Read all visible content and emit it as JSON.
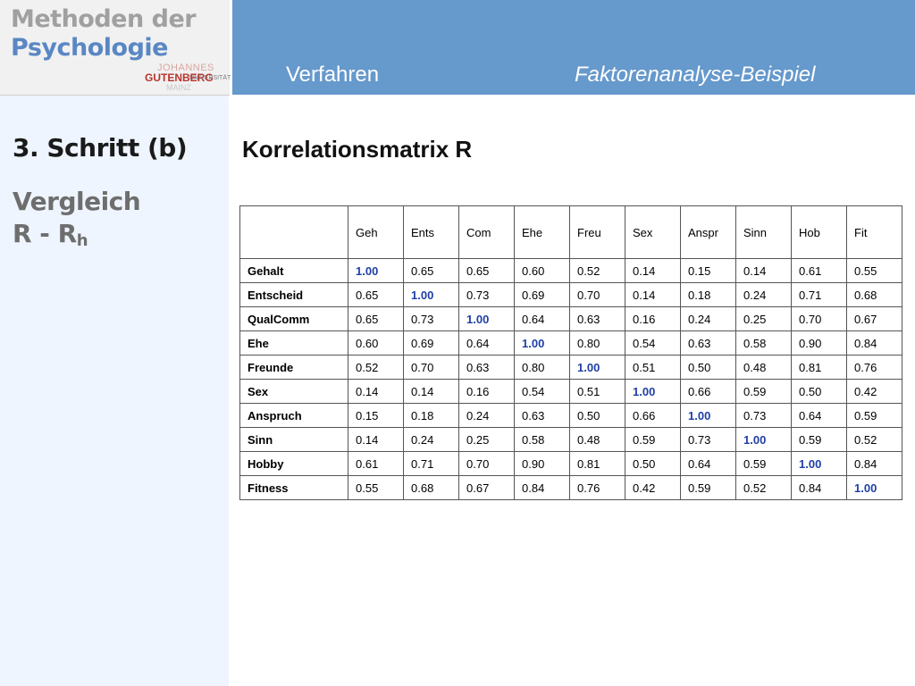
{
  "header": {
    "logo_line1": "Methoden der",
    "logo_line2": "Psychologie",
    "university": {
      "line1": "JOHANNES",
      "line2": "GUTENBERG",
      "line3": "UNIVERSITÄT",
      "line4": "MAINZ"
    },
    "section": "Verfahren",
    "topic": "Faktorenanalyse-Beispiel"
  },
  "sidebar": {
    "step": "3. Schritt (b)",
    "subtitle_line1": "Vergleich",
    "subtitle_line2_main": "R - R",
    "subtitle_line2_sub": "h"
  },
  "main": {
    "title": "Korrelationsmatrix R",
    "columns": [
      "Geh",
      "Ents",
      "Com",
      "Ehe",
      "Freu",
      "Sex",
      "Anspr",
      "Sinn",
      "Hob",
      "Fit"
    ],
    "rows": [
      {
        "label": "Gehalt",
        "values": [
          "1.00",
          "0.65",
          "0.65",
          "0.60",
          "0.52",
          "0.14",
          "0.15",
          "0.14",
          "0.61",
          "0.55"
        ]
      },
      {
        "label": "Entscheid",
        "values": [
          "0.65",
          "1.00",
          "0.73",
          "0.69",
          "0.70",
          "0.14",
          "0.18",
          "0.24",
          "0.71",
          "0.68"
        ]
      },
      {
        "label": "QualComm",
        "values": [
          "0.65",
          "0.73",
          "1.00",
          "0.64",
          "0.63",
          "0.16",
          "0.24",
          "0.25",
          "0.70",
          "0.67"
        ]
      },
      {
        "label": "Ehe",
        "values": [
          "0.60",
          "0.69",
          "0.64",
          "1.00",
          "0.80",
          "0.54",
          "0.63",
          "0.58",
          "0.90",
          "0.84"
        ]
      },
      {
        "label": "Freunde",
        "values": [
          "0.52",
          "0.70",
          "0.63",
          "0.80",
          "1.00",
          "0.51",
          "0.50",
          "0.48",
          "0.81",
          "0.76"
        ]
      },
      {
        "label": "Sex",
        "values": [
          "0.14",
          "0.14",
          "0.16",
          "0.54",
          "0.51",
          "1.00",
          "0.66",
          "0.59",
          "0.50",
          "0.42"
        ]
      },
      {
        "label": "Anspruch",
        "values": [
          "0.15",
          "0.18",
          "0.24",
          "0.63",
          "0.50",
          "0.66",
          "1.00",
          "0.73",
          "0.64",
          "0.59"
        ]
      },
      {
        "label": "Sinn",
        "values": [
          "0.14",
          "0.24",
          "0.25",
          "0.58",
          "0.48",
          "0.59",
          "0.73",
          "1.00",
          "0.59",
          "0.52"
        ]
      },
      {
        "label": "Hobby",
        "values": [
          "0.61",
          "0.71",
          "0.70",
          "0.90",
          "0.81",
          "0.50",
          "0.64",
          "0.59",
          "1.00",
          "0.84"
        ]
      },
      {
        "label": "Fitness",
        "values": [
          "0.55",
          "0.68",
          "0.67",
          "0.84",
          "0.76",
          "0.42",
          "0.59",
          "0.52",
          "0.84",
          "1.00"
        ]
      }
    ]
  },
  "colors": {
    "header_blue": "#6699cc",
    "sidebar_bg": "#eef5fe",
    "diagonal": "#1f3fa6",
    "logo_blue": "#5a87c4",
    "gutenberg_red": "#b8332c"
  }
}
